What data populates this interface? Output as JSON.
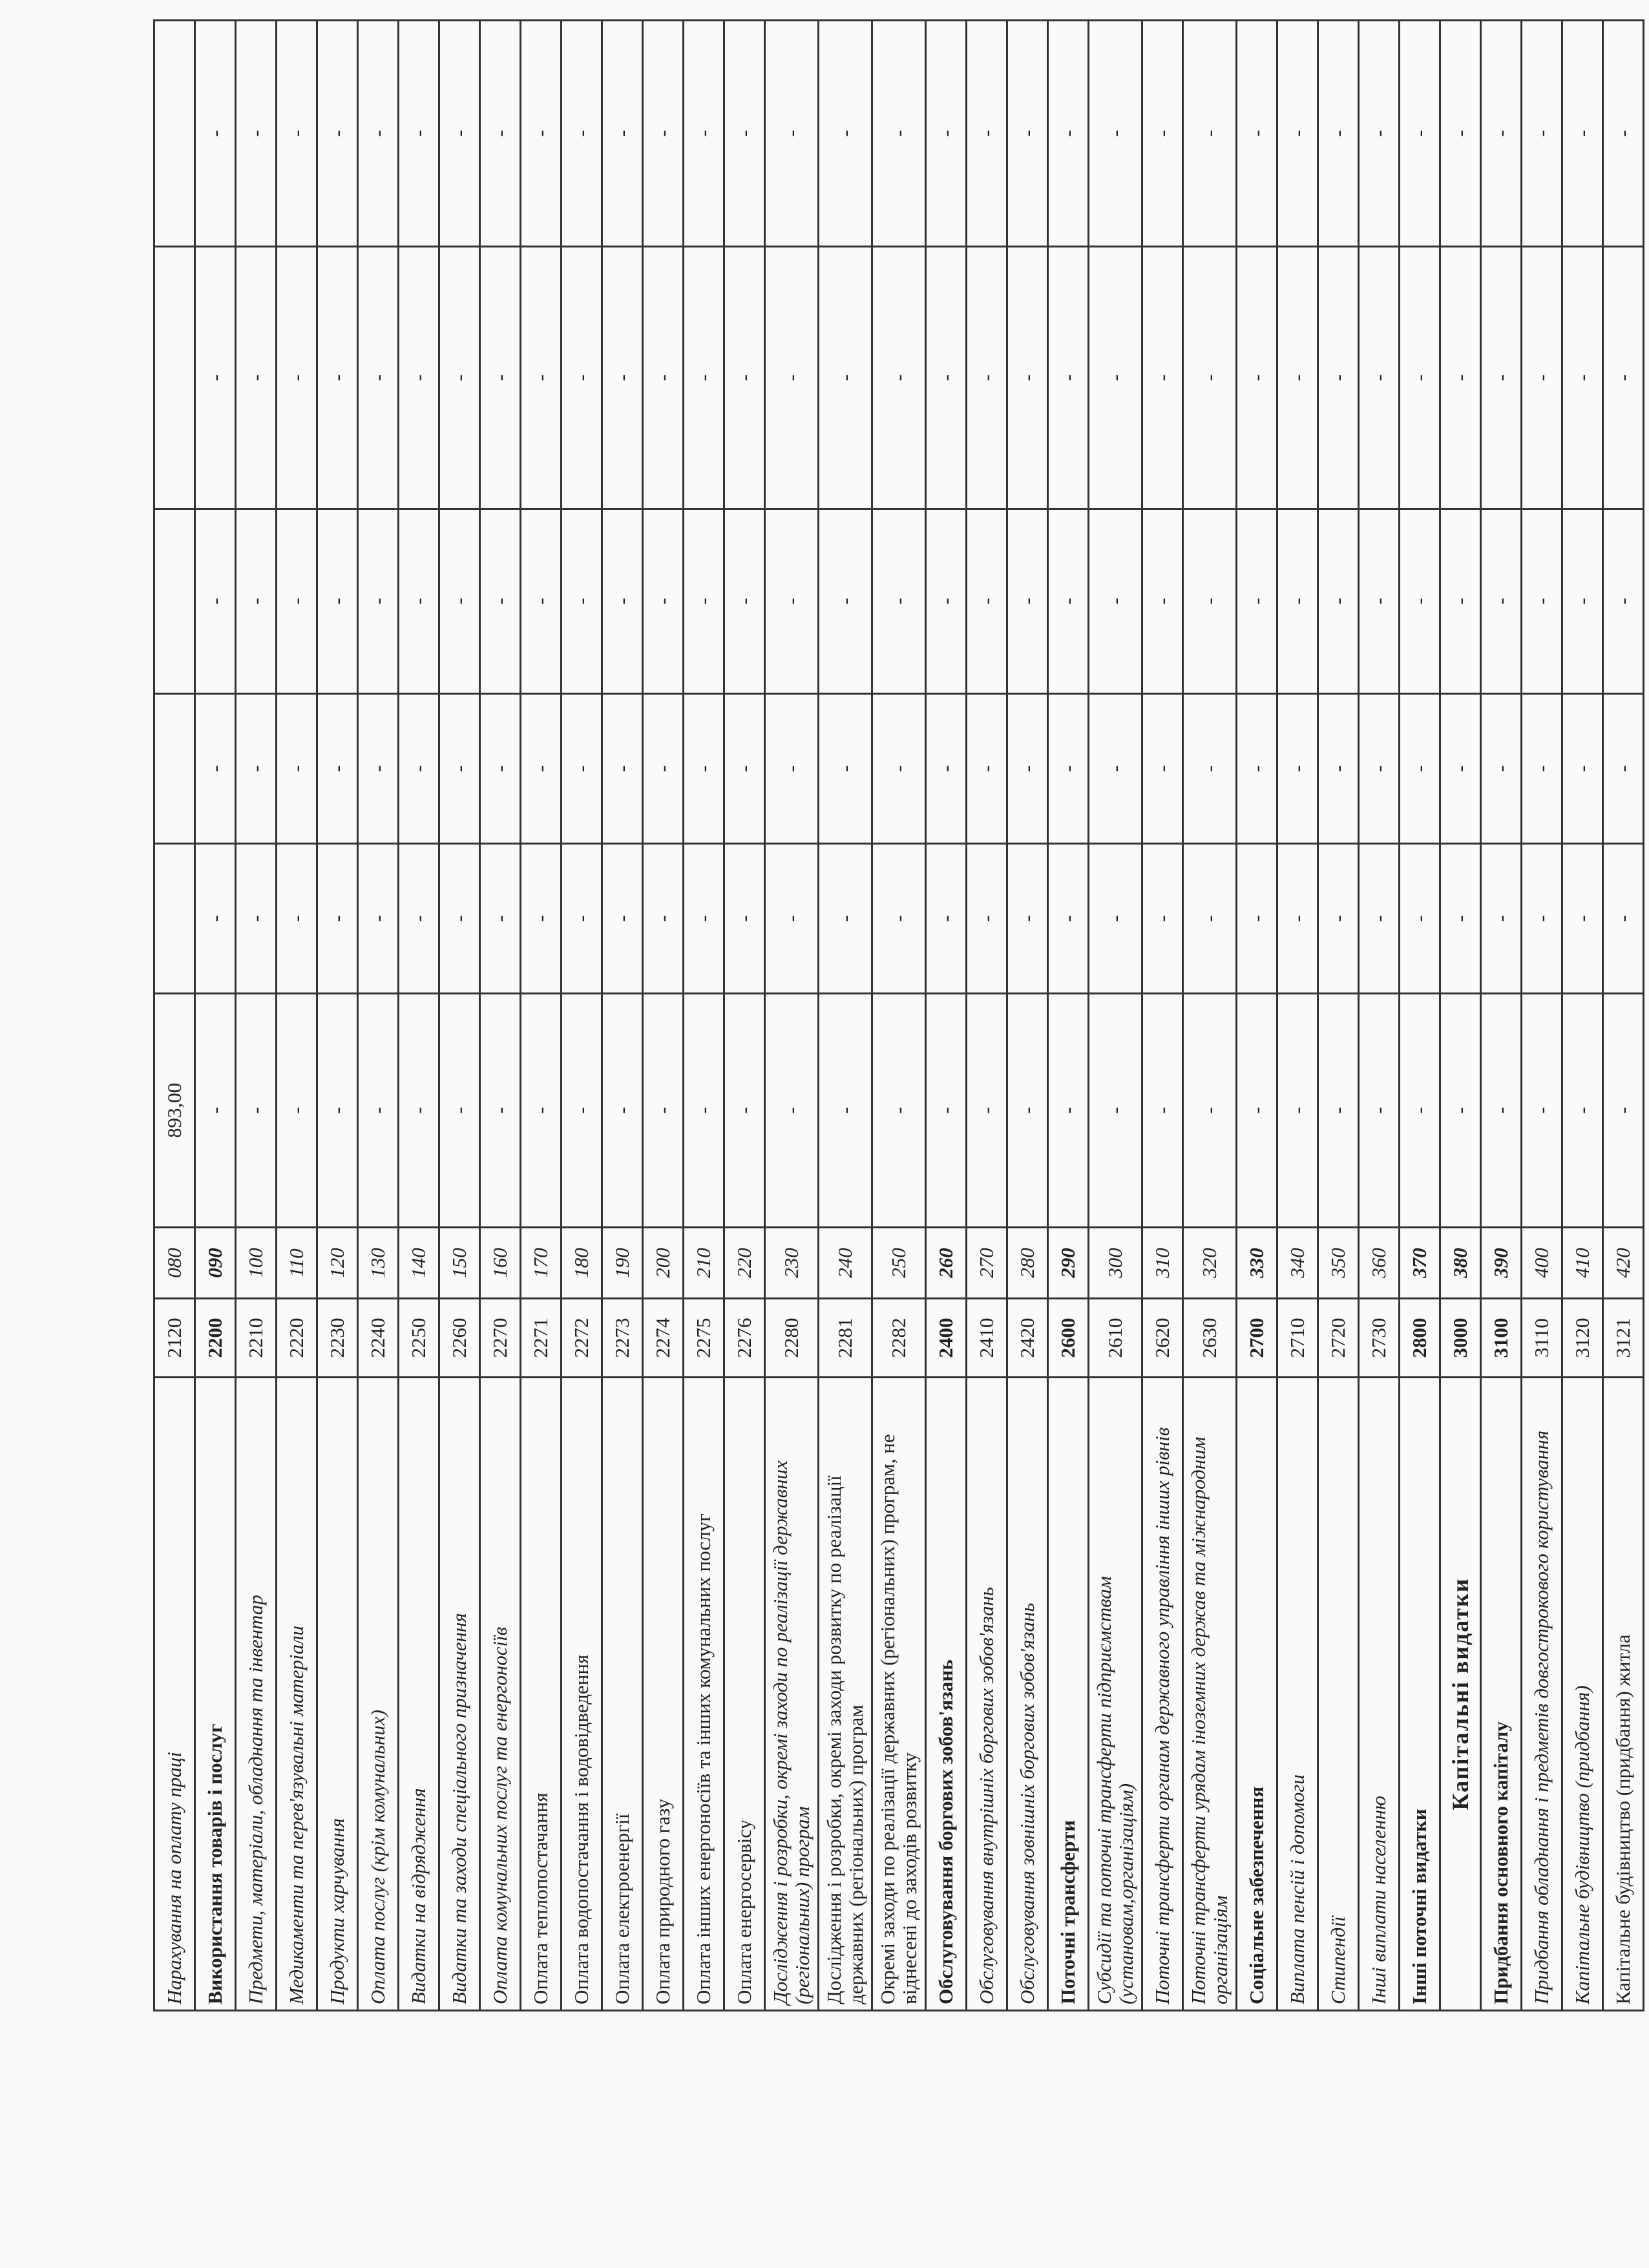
{
  "table": {
    "columns": 9,
    "rows": [
      {
        "name": "Нарахування на оплату праці",
        "code": "2120",
        "line": "080",
        "style": "italic",
        "values": [
          "893,00",
          null,
          null,
          null,
          null,
          null
        ]
      },
      {
        "name": "Використання товарів і послуг",
        "code": "2200",
        "line": "090",
        "style": "bold",
        "values": [
          "-",
          "-",
          "-",
          "-",
          "-",
          "-"
        ]
      },
      {
        "name": "Предмети, матеріали, обладнання та інвентар",
        "code": "2210",
        "line": "100",
        "style": "italic",
        "values": [
          "-",
          "-",
          "-",
          "-",
          "-",
          "-"
        ]
      },
      {
        "name": "Медикаменти та перев'язувальні матеріали",
        "code": "2220",
        "line": "110",
        "style": "italic",
        "values": [
          "-",
          "-",
          "-",
          "-",
          "-",
          "-"
        ]
      },
      {
        "name": "Продукти харчування",
        "code": "2230",
        "line": "120",
        "style": "italic",
        "values": [
          "-",
          "-",
          "-",
          "-",
          "-",
          "-"
        ]
      },
      {
        "name": "Оплата послуг (крім комунальних)",
        "code": "2240",
        "line": "130",
        "style": "italic",
        "values": [
          "-",
          "-",
          "-",
          "-",
          "-",
          "-"
        ]
      },
      {
        "name": "Видатки на відрядження",
        "code": "2250",
        "line": "140",
        "style": "italic",
        "values": [
          "-",
          "-",
          "-",
          "-",
          "-",
          "-"
        ]
      },
      {
        "name": "Видатки та заходи спеціального призначення",
        "code": "2260",
        "line": "150",
        "style": "italic",
        "values": [
          "-",
          "-",
          "-",
          "-",
          "-",
          "-"
        ]
      },
      {
        "name": "Оплата комунальних послуг та енергоносіїв",
        "code": "2270",
        "line": "160",
        "style": "italic",
        "values": [
          "-",
          "-",
          "-",
          "-",
          "-",
          "-"
        ]
      },
      {
        "name": "Оплата теплопостачання",
        "code": "2271",
        "line": "170",
        "style": "normal",
        "values": [
          "-",
          "-",
          "-",
          "-",
          "-",
          "-"
        ]
      },
      {
        "name": "Оплата водопостачання і водовідведення",
        "code": "2272",
        "line": "180",
        "style": "normal",
        "values": [
          "-",
          "-",
          "-",
          "-",
          "-",
          "-"
        ]
      },
      {
        "name": "Оплата електроенергії",
        "code": "2273",
        "line": "190",
        "style": "normal",
        "values": [
          "-",
          "-",
          "-",
          "-",
          "-",
          "-"
        ]
      },
      {
        "name": "Оплата природного газу",
        "code": "2274",
        "line": "200",
        "style": "normal",
        "values": [
          "-",
          "-",
          "-",
          "-",
          "-",
          "-"
        ]
      },
      {
        "name": "Оплата інших енергоносіїв та інших комунальних послуг",
        "code": "2275",
        "line": "210",
        "style": "normal",
        "values": [
          "-",
          "-",
          "-",
          "-",
          "-",
          "-"
        ]
      },
      {
        "name": "Оплата енергосервісу",
        "code": "2276",
        "line": "220",
        "style": "normal",
        "values": [
          "-",
          "-",
          "-",
          "-",
          "-",
          "-"
        ]
      },
      {
        "name": "Дослідження і розробки, окремі заходи по реалізації державних (регіональних) програм",
        "code": "2280",
        "line": "230",
        "style": "italic",
        "values": [
          "-",
          "-",
          "-",
          "-",
          "-",
          "-"
        ]
      },
      {
        "name": "Дослідження і розробки, окремі заходи розвитку по реалізації державних (регіональних) програм",
        "code": "2281",
        "line": "240",
        "style": "normal",
        "values": [
          "-",
          "-",
          "-",
          "-",
          "-",
          "-"
        ]
      },
      {
        "name": "Окремі заходи по реалізації державних (регіональних) програм, не віднесені до заходів розвитку",
        "code": "2282",
        "line": "250",
        "style": "normal",
        "values": [
          "-",
          "-",
          "-",
          "-",
          "-",
          "-"
        ]
      },
      {
        "name": "Обслуговування боргових зобов'язань",
        "code": "2400",
        "line": "260",
        "style": "bold",
        "values": [
          "-",
          "-",
          "-",
          "-",
          "-",
          "-"
        ]
      },
      {
        "name": "Обслуговування внутрішніх боргових зобов'язань",
        "code": "2410",
        "line": "270",
        "style": "italic",
        "values": [
          "-",
          "-",
          "-",
          "-",
          "-",
          "-"
        ]
      },
      {
        "name": "Обслуговування зовнішніх боргових зобов'язань",
        "code": "2420",
        "line": "280",
        "style": "italic",
        "values": [
          "-",
          "-",
          "-",
          "-",
          "-",
          "-"
        ]
      },
      {
        "name": "Поточні трансферти",
        "code": "2600",
        "line": "290",
        "style": "bold",
        "values": [
          "-",
          "-",
          "-",
          "-",
          "-",
          "-"
        ]
      },
      {
        "name": "Субсидії та поточні трансферти підприємствам (установам,організаціям)",
        "code": "2610",
        "line": "300",
        "style": "italic",
        "values": [
          "-",
          "-",
          "-",
          "-",
          "-",
          "-"
        ]
      },
      {
        "name": "Поточні трансферти органам державного управління інших рівнів",
        "code": "2620",
        "line": "310",
        "style": "italic",
        "values": [
          "-",
          "-",
          "-",
          "-",
          "-",
          "-"
        ]
      },
      {
        "name": "Поточні трансферти урядам іноземних держав та міжнародним організаціям",
        "code": "2630",
        "line": "320",
        "style": "italic",
        "values": [
          "-",
          "-",
          "-",
          "-",
          "-",
          "-"
        ]
      },
      {
        "name": "Соціальне забезпечення",
        "code": "2700",
        "line": "330",
        "style": "bold",
        "values": [
          "-",
          "-",
          "-",
          "-",
          "-",
          "-"
        ]
      },
      {
        "name": "Виплата пенсій і допомоги",
        "code": "2710",
        "line": "340",
        "style": "italic",
        "values": [
          "-",
          "-",
          "-",
          "-",
          "-",
          "-"
        ]
      },
      {
        "name": "Стипендії",
        "code": "2720",
        "line": "350",
        "style": "italic",
        "values": [
          "-",
          "-",
          "-",
          "-",
          "-",
          "-"
        ]
      },
      {
        "name": "Інші виплати населенню",
        "code": "2730",
        "line": "360",
        "style": "italic",
        "values": [
          "-",
          "-",
          "-",
          "-",
          "-",
          "-"
        ]
      },
      {
        "name": "Інші поточні видатки",
        "code": "2800",
        "line": "370",
        "style": "bold",
        "values": [
          "-",
          "-",
          "-",
          "-",
          "-",
          "-"
        ]
      },
      {
        "name": "Капітальні видатки",
        "code": "3000",
        "line": "380",
        "style": "heading",
        "values": [
          "-",
          "-",
          "-",
          "-",
          "-",
          "-"
        ]
      },
      {
        "name": "Придбання основного капіталу",
        "code": "3100",
        "line": "390",
        "style": "bold",
        "values": [
          "-",
          "-",
          "-",
          "-",
          "-",
          "-"
        ]
      },
      {
        "name": "Придбання обладнання і предметів довгострокового користування",
        "code": "3110",
        "line": "400",
        "style": "italic",
        "values": [
          "-",
          "-",
          "-",
          "-",
          "-",
          "-"
        ]
      },
      {
        "name": "Капітальне будівництво (придбання)",
        "code": "3120",
        "line": "410",
        "style": "italic",
        "values": [
          "-",
          "-",
          "-",
          "-",
          "-",
          "-"
        ]
      },
      {
        "name": "Капітальне будівництво (придбання) житла",
        "code": "3121",
        "line": "420",
        "style": "normal",
        "values": [
          "-",
          "-",
          "-",
          "-",
          "-",
          "-"
        ]
      }
    ]
  }
}
